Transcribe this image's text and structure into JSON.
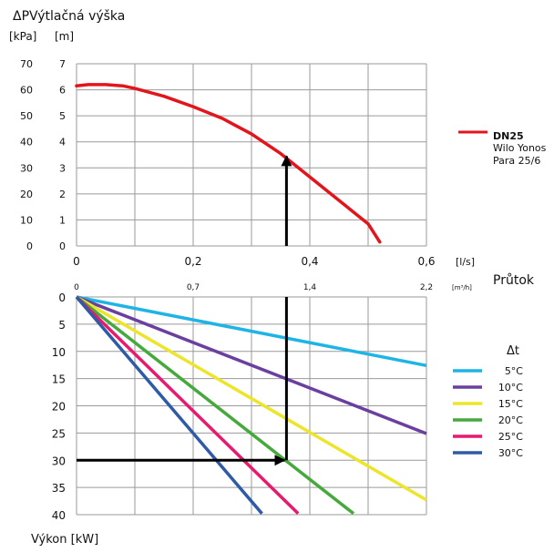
{
  "title": "ΔPVýtlačná výška",
  "pump_chart": {
    "unit_left": "[kPa]",
    "unit_right": "[m]",
    "kpa_ticks": [
      "70",
      "60",
      "50",
      "40",
      "30",
      "20",
      "10",
      "0"
    ],
    "m_ticks": [
      "7",
      "6",
      "5",
      "4",
      "3",
      "2",
      "1",
      "0"
    ],
    "flow_ls_ticks": [
      "0",
      "0,2",
      "0,4",
      "0,6"
    ],
    "flow_ls_unit": "[l/s]",
    "flow_m3h_ticks": [
      "0",
      "0,7",
      "1,4",
      "2,2"
    ],
    "flow_m3h_unit": "[m³/h]",
    "flow_label": "Průtok"
  },
  "legend_pump": {
    "name": "DN25",
    "line1": "Wilo Yonos",
    "line2": "Para 25/6",
    "color": "#e3141c"
  },
  "power_chart": {
    "y_ticks": [
      "0",
      "5",
      "10",
      "15",
      "20",
      "25",
      "30",
      "35",
      "40"
    ],
    "y_label": "Výkon [kW]"
  },
  "legend_dt": {
    "title": "Δt",
    "items": [
      {
        "label": "5°C",
        "color": "#1eb4e6"
      },
      {
        "label": "10°C",
        "color": "#6a3fa0"
      },
      {
        "label": "15°C",
        "color": "#ede52a"
      },
      {
        "label": "20°C",
        "color": "#45a93c"
      },
      {
        "label": "25°C",
        "color": "#e8196e"
      },
      {
        "label": "30°C",
        "color": "#2e5aa6"
      }
    ]
  },
  "chart_data": [
    {
      "type": "line",
      "title": "ΔPVýtlačná výška",
      "xlabel": "Průtok [l/s]",
      "ylabel": "[m]",
      "xlim": [
        0,
        0.6
      ],
      "ylim": [
        0,
        7
      ],
      "series": [
        {
          "name": "DN25",
          "color": "#e3141c",
          "x": [
            0,
            0.02,
            0.05,
            0.08,
            0.1,
            0.15,
            0.2,
            0.25,
            0.3,
            0.35,
            0.4,
            0.45,
            0.5,
            0.52
          ],
          "y": [
            6.15,
            6.2,
            6.2,
            6.15,
            6.05,
            5.75,
            5.35,
            4.9,
            4.3,
            3.55,
            2.65,
            1.75,
            0.85,
            0.15
          ]
        }
      ],
      "annotations": [
        {
          "type": "arrow",
          "from_x": 0.36,
          "from_y": 0,
          "to_x": 0.36,
          "to_y": 3.45
        }
      ]
    },
    {
      "type": "line",
      "xlabel": "Průtok [l/s]",
      "ylabel": "Výkon [kW]",
      "xlim": [
        0,
        0.6
      ],
      "ylim": [
        0,
        40
      ],
      "y_inverted": true,
      "series": [
        {
          "name": "5°C",
          "color": "#1eb4e6",
          "x": [
            0,
            0.6
          ],
          "y": [
            0,
            12.6
          ]
        },
        {
          "name": "10°C",
          "color": "#6a3fa0",
          "x": [
            0,
            0.6
          ],
          "y": [
            0,
            25.1
          ]
        },
        {
          "name": "15°C",
          "color": "#ede52a",
          "x": [
            0,
            0.6
          ],
          "y": [
            0,
            37.3
          ]
        },
        {
          "name": "20°C",
          "color": "#45a93c",
          "x": [
            0,
            0.475
          ],
          "y": [
            0,
            39.8
          ]
        },
        {
          "name": "25°C",
          "color": "#e8196e",
          "x": [
            0,
            0.38
          ],
          "y": [
            0,
            39.8
          ]
        },
        {
          "name": "30°C",
          "color": "#2e5aa6",
          "x": [
            0,
            0.318
          ],
          "y": [
            0,
            39.8
          ]
        }
      ],
      "annotations": [
        {
          "type": "arrow",
          "from_x": 0.36,
          "from_y": 30,
          "to_x": 0.36,
          "to_y": 0
        },
        {
          "type": "arrow",
          "from_x": 0,
          "from_y": 30,
          "to_x": 0.36,
          "to_y": 30
        }
      ]
    }
  ]
}
